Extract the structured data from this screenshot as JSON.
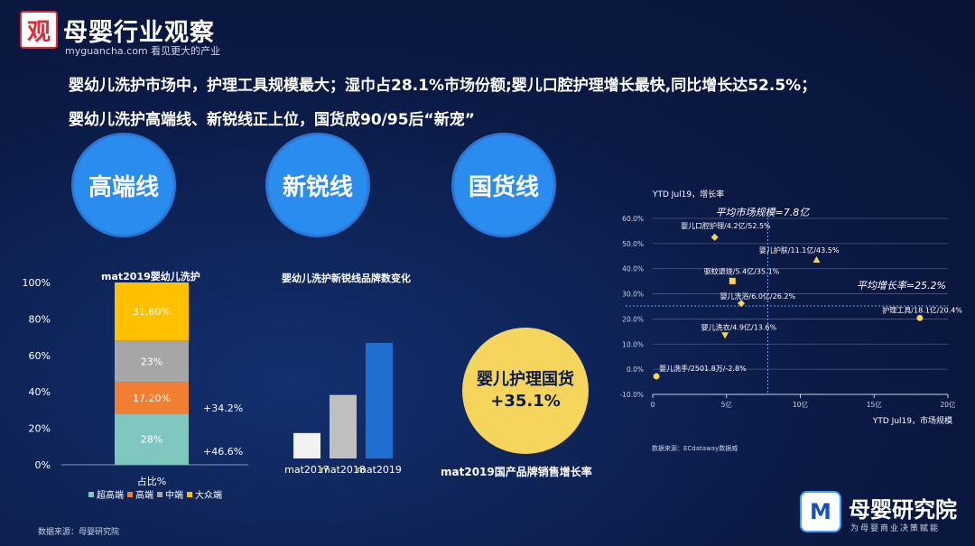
{
  "header": {
    "logo_glyph": "观",
    "brand_name": "母婴行业观察",
    "brand_url": "myguancha.com",
    "brand_slogan": "看见更大的产业",
    "headline_1": "婴幼儿洗护市场中，护理工具规模最大；湿巾占28.1%市场份额;婴儿口腔护理增长最快,同比增长达52.5%；",
    "headline_2": "婴幼儿洗护高端线、新锐线正上位，国货成90/95后“新宠”"
  },
  "circles": [
    "高端线",
    "新锐线",
    "国货线"
  ],
  "stacked": {
    "title": "mat2019婴幼儿洗护",
    "xlabel": "占比%",
    "growth_labels": [
      "+34.2%",
      "+46.6%"
    ],
    "source": "数据来源：母婴研究院"
  },
  "newbrand": {
    "title": "婴幼儿洗护新锐线品牌数变化"
  },
  "domestic": {
    "line1": "婴儿护理国货",
    "line2": "+35.1%",
    "caption": "mat2019国产品牌销售增长率"
  },
  "scatter": {
    "title": "YTD Jul19，增长率",
    "xlabel": "YTD Jul19，市场规模",
    "avg_size_label": "平均市场规模=7.8亿",
    "avg_growth_label": "平均增长率=25.2%",
    "source": "数据来源：ECdataway数据威"
  },
  "institute": {
    "glyph": "M",
    "name": "母婴研究院",
    "sub": "为母婴商业决策赋能"
  },
  "colors": {
    "accent_blue": "#2b8cf0",
    "yellow": "#f6d55c",
    "teal": "#7fc7bf",
    "orange": "#f07f33",
    "gray": "#a6a6a6",
    "gold": "#ffc000",
    "bar_light": "#f2f2f2",
    "bar_mid": "#bfbfbf",
    "bar_blue": "#1f6fd1"
  },
  "chart_data": [
    {
      "type": "bar",
      "stacked": true,
      "title": "mat2019婴幼儿洗护",
      "xlabel": "占比%",
      "ylim": [
        0,
        100
      ],
      "yticks": [
        "0%",
        "20%",
        "40%",
        "60%",
        "80%",
        "100%"
      ],
      "series": [
        {
          "name": "超高端",
          "values": [
            28
          ],
          "label": "28%",
          "color": "#7fc7bf"
        },
        {
          "name": "高端",
          "values": [
            17.2
          ],
          "label": "17.20%",
          "color": "#f07f33"
        },
        {
          "name": "中端",
          "values": [
            23
          ],
          "label": "23%",
          "color": "#a6a6a6"
        },
        {
          "name": "大众端",
          "values": [
            31.8
          ],
          "label": "31.80%",
          "color": "#ffc000"
        }
      ]
    },
    {
      "type": "bar",
      "title": "婴幼儿洗护新锐线品牌数变化",
      "categories": [
        "mat2017",
        "mat2018",
        "mat2019"
      ],
      "values": [
        22,
        55,
        100
      ],
      "colors": [
        "#f2f2f2",
        "#bfbfbf",
        "#1f6fd1"
      ]
    },
    {
      "type": "scatter",
      "xlabel": "YTD Jul19，市场规模",
      "ylabel": "YTD Jul19，增长率",
      "xlim": [
        0,
        20
      ],
      "ylim": [
        -10,
        60
      ],
      "xticks": [
        "0",
        "5亿",
        "10亿",
        "15亿",
        "20亿"
      ],
      "yticks": [
        "-10.0%",
        "0.0%",
        "10.0%",
        "20.0%",
        "30.0%",
        "40.0%",
        "50.0%",
        "60.0%"
      ],
      "avg_x": 7.8,
      "avg_y": 25.2,
      "points": [
        {
          "label": "婴儿口腔护理/4.2亿/52.5%",
          "x": 4.2,
          "y": 52.5,
          "marker": "diamond"
        },
        {
          "label": "婴儿护肤/11.1亿/43.5%",
          "x": 11.1,
          "y": 43.5,
          "marker": "triangle"
        },
        {
          "label": "驱蚊退烧/5.4亿/35.1%",
          "x": 5.4,
          "y": 35.1,
          "marker": "square"
        },
        {
          "label": "婴儿洗浴/6.0亿/26.2%",
          "x": 6.0,
          "y": 26.2,
          "marker": "diamond"
        },
        {
          "label": "护理工具/18.1亿/20.4%",
          "x": 18.1,
          "y": 20.4,
          "marker": "circle"
        },
        {
          "label": "婴儿洗衣/4.9亿/13.6%",
          "x": 4.9,
          "y": 13.6,
          "marker": "triangle-down"
        },
        {
          "label": "婴儿洗手/2501.8万/-2.8%",
          "x": 0.25,
          "y": -2.8,
          "marker": "circle"
        }
      ]
    }
  ]
}
